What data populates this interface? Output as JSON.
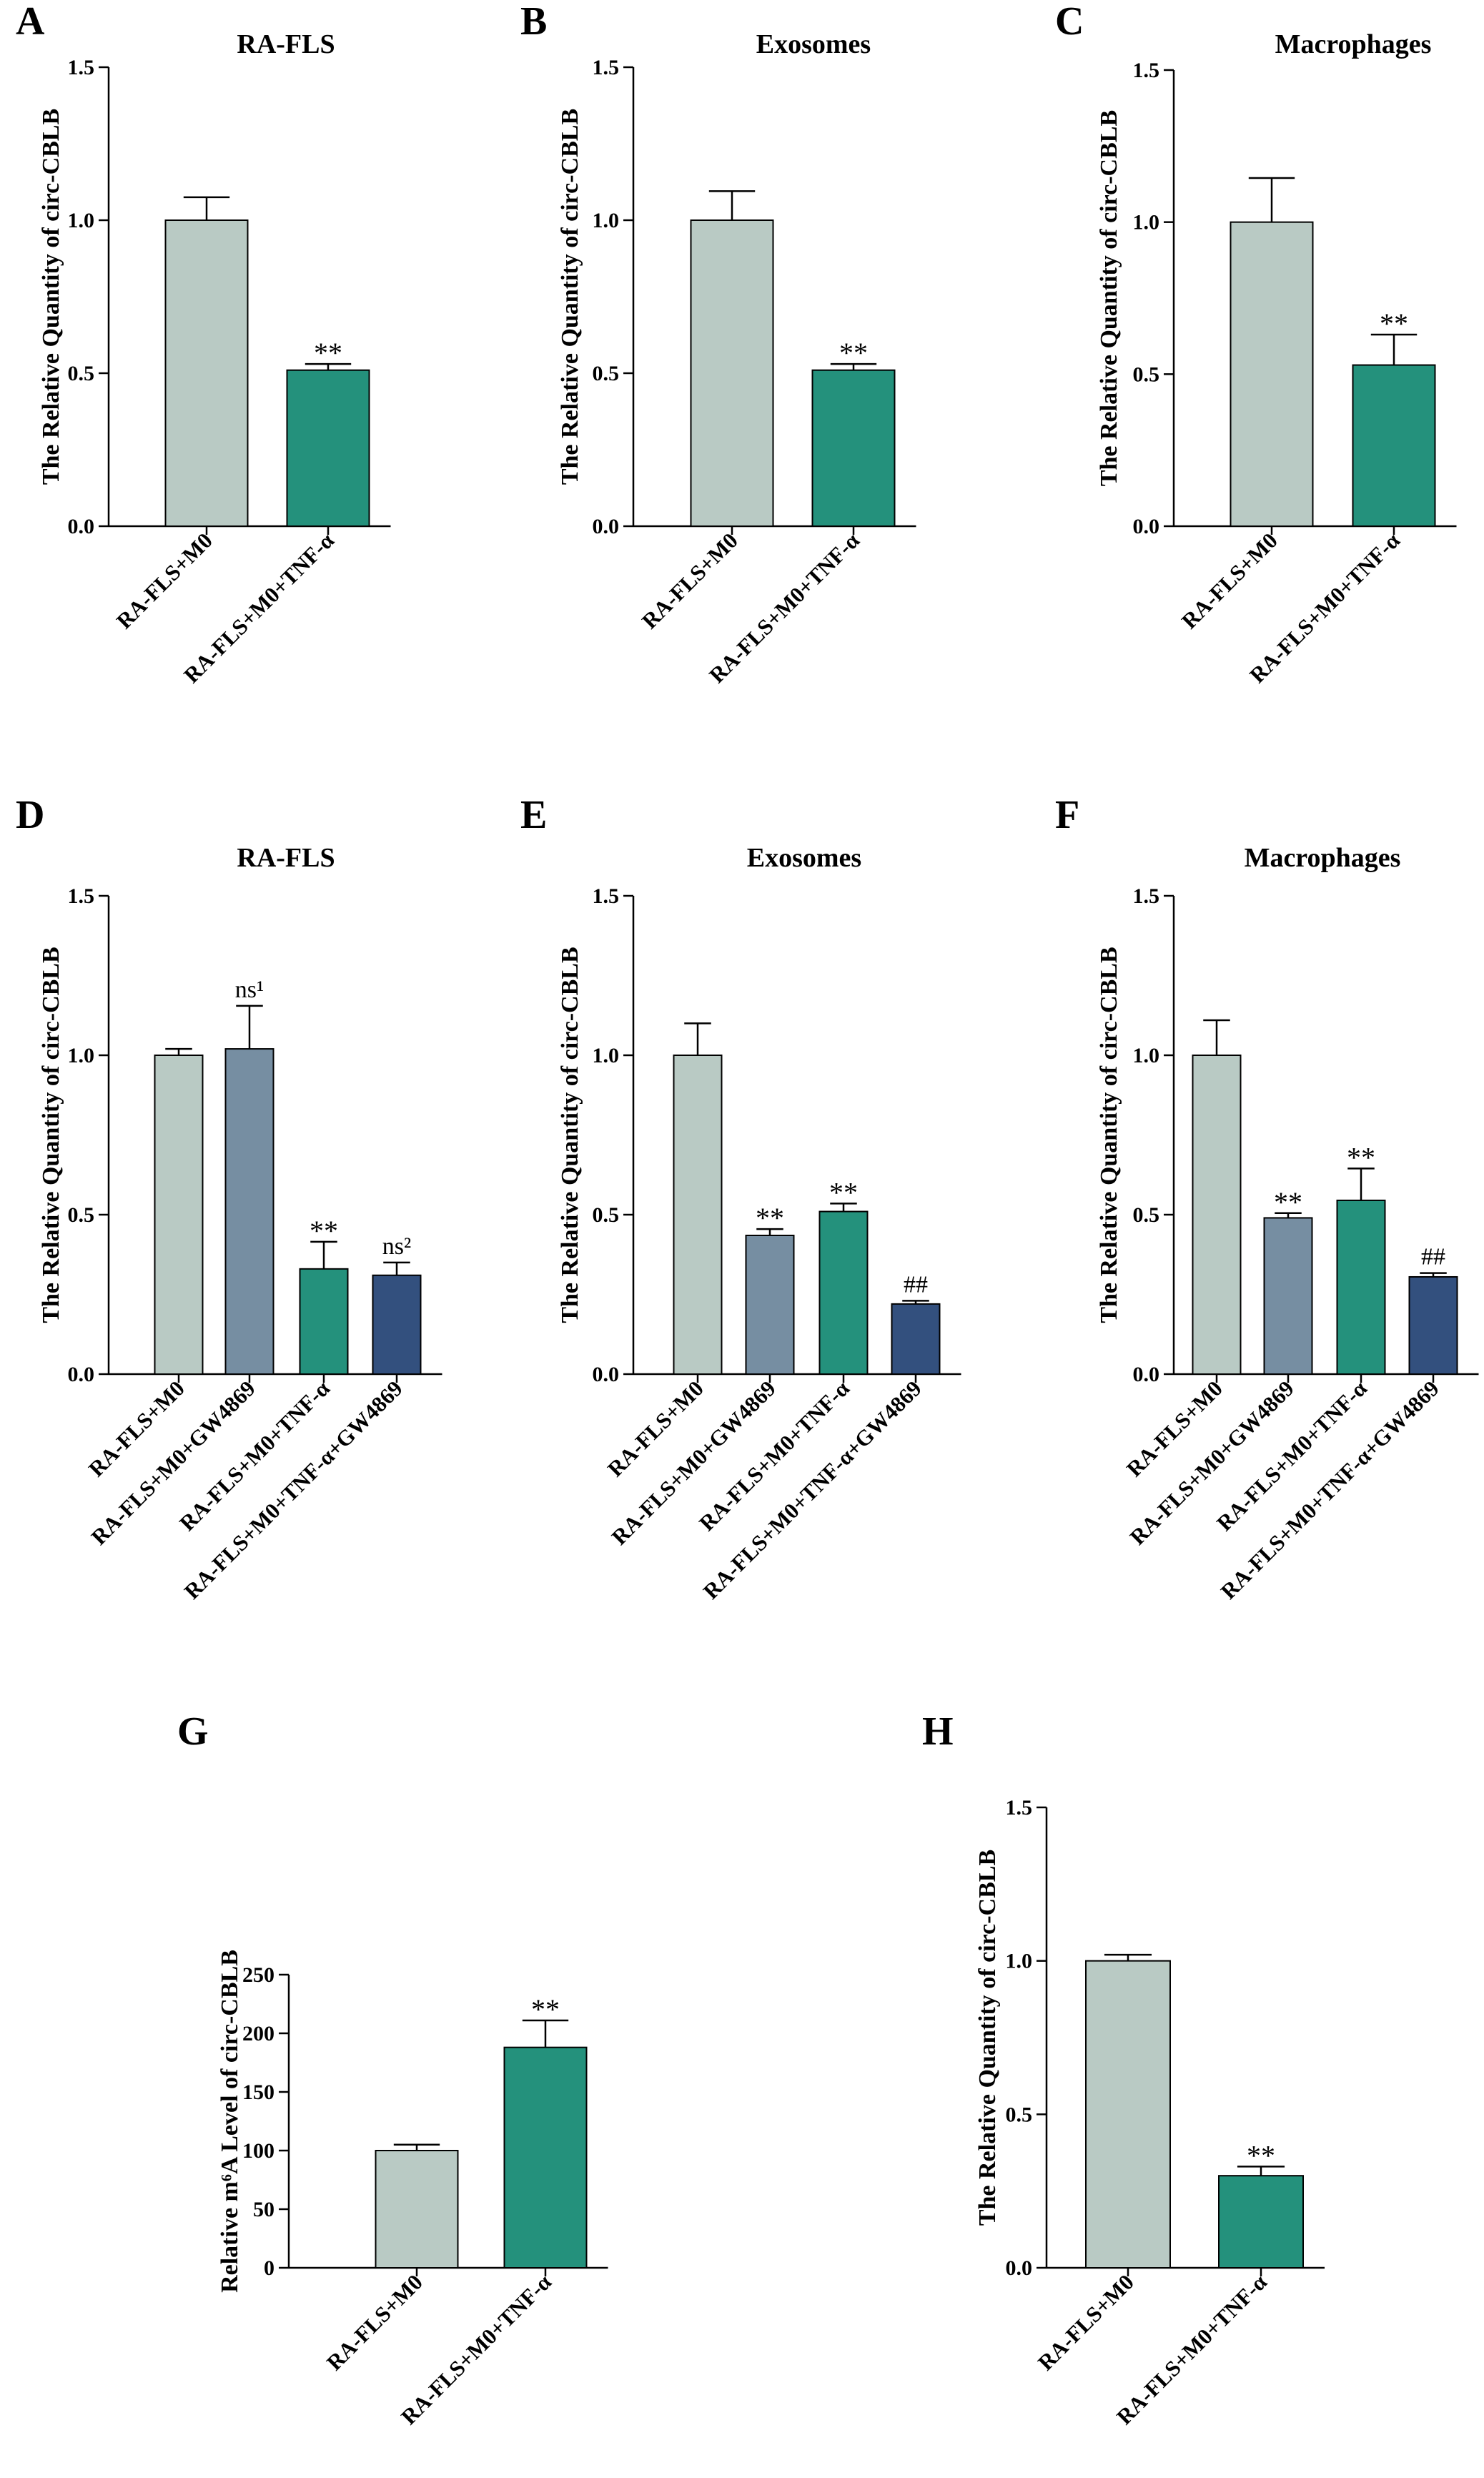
{
  "chart_data": [
    {
      "panel": "A",
      "type": "bar",
      "title": "RA-FLS",
      "ylabel": "The Relative Quantity of circ-CBLB",
      "ylim": [
        0,
        1.5
      ],
      "yticks": [
        "0.0",
        "0.5",
        "1.0",
        "1.5"
      ],
      "categories": [
        "RA-FLS+M0",
        "RA-FLS+M0+TNF-α"
      ],
      "values": [
        1.0,
        0.51
      ],
      "errors": [
        0.075,
        0.02
      ],
      "colors": [
        "#b9cac4",
        "#24917c"
      ],
      "annotations": [
        "",
        "**"
      ]
    },
    {
      "panel": "B",
      "type": "bar",
      "title": "Exosomes",
      "ylabel": "The Relative Quantity of circ-CBLB",
      "ylim": [
        0,
        1.5
      ],
      "yticks": [
        "0.0",
        "0.5",
        "1.0",
        "1.5"
      ],
      "categories": [
        "RA-FLS+M0",
        "RA-FLS+M0+TNF-α"
      ],
      "values": [
        1.0,
        0.51
      ],
      "errors": [
        0.095,
        0.02
      ],
      "colors": [
        "#b9cac4",
        "#24917c"
      ],
      "annotations": [
        "",
        "**"
      ]
    },
    {
      "panel": "C",
      "type": "bar",
      "title": "Macrophages",
      "ylabel": "The Relative Quantity of circ-CBLB",
      "ylim": [
        0,
        1.5
      ],
      "yticks": [
        "0.0",
        "0.5",
        "1.0",
        "1.5"
      ],
      "categories": [
        "RA-FLS+M0",
        "RA-FLS+M0+TNF-α"
      ],
      "values": [
        1.0,
        0.53
      ],
      "errors": [
        0.145,
        0.1
      ],
      "colors": [
        "#b9cac4",
        "#24917c"
      ],
      "annotations": [
        "",
        "**"
      ]
    },
    {
      "panel": "D",
      "type": "bar",
      "title": "RA-FLS",
      "ylabel": "The Relative Quantity of circ-CBLB",
      "ylim": [
        0,
        1.5
      ],
      "yticks": [
        "0.0",
        "0.5",
        "1.0",
        "1.5"
      ],
      "categories": [
        "RA-FLS+M0",
        "RA-FLS+M0+GW4869",
        "RA-FLS+M0+TNF-α",
        "RA-FLS+M0+TNF-α+GW4869"
      ],
      "values": [
        1.0,
        1.02,
        0.33,
        0.31
      ],
      "errors": [
        0.02,
        0.135,
        0.085,
        0.04
      ],
      "colors": [
        "#b9cac4",
        "#768ea2",
        "#24917c",
        "#33507e"
      ],
      "annotations": [
        "",
        "ns¹",
        "**",
        "ns²"
      ]
    },
    {
      "panel": "E",
      "type": "bar",
      "title": "Exosomes",
      "ylabel": "The Relative Quantity of circ-CBLB",
      "ylim": [
        0,
        1.5
      ],
      "yticks": [
        "0.0",
        "0.5",
        "1.0",
        "1.5"
      ],
      "categories": [
        "RA-FLS+M0",
        "RA-FLS+M0+GW4869",
        "RA-FLS+M0+TNF-α",
        "RA-FLS+M0+TNF-α+GW4869"
      ],
      "values": [
        1.0,
        0.435,
        0.51,
        0.22
      ],
      "errors": [
        0.1,
        0.02,
        0.025,
        0.01
      ],
      "colors": [
        "#b9cac4",
        "#768ea2",
        "#24917c",
        "#33507e"
      ],
      "annotations": [
        "",
        "**",
        "**",
        "##"
      ]
    },
    {
      "panel": "F",
      "type": "bar",
      "title": "Macrophages",
      "ylabel": "The Relative Quantity of circ-CBLB",
      "ylim": [
        0,
        1.5
      ],
      "yticks": [
        "0.0",
        "0.5",
        "1.0",
        "1.5"
      ],
      "categories": [
        "RA-FLS+M0",
        "RA-FLS+M0+GW4869",
        "RA-FLS+M0+TNF-α",
        "RA-FLS+M0+TNF-α+GW4869"
      ],
      "values": [
        1.0,
        0.49,
        0.545,
        0.305
      ],
      "errors": [
        0.11,
        0.015,
        0.1,
        0.012
      ],
      "colors": [
        "#b9cac4",
        "#768ea2",
        "#24917c",
        "#33507e"
      ],
      "annotations": [
        "",
        "**",
        "**",
        "##"
      ]
    },
    {
      "panel": "G",
      "type": "bar",
      "title": "",
      "ylabel": "Relative m⁶A Level of circ-CBLB",
      "ylim": [
        0,
        250
      ],
      "yticks": [
        "0",
        "50",
        "100",
        "150",
        "200",
        "250"
      ],
      "categories": [
        "RA-FLS+M0",
        "RA-FLS+M0+TNF-α"
      ],
      "values": [
        100,
        188
      ],
      "errors": [
        5,
        23
      ],
      "colors": [
        "#b9cac4",
        "#24917c"
      ],
      "annotations": [
        "",
        "**"
      ]
    },
    {
      "panel": "H",
      "type": "bar",
      "title": "",
      "ylabel": "The Relative Quantity of circ-CBLB",
      "ylim": [
        0,
        1.5
      ],
      "yticks": [
        "0.0",
        "0.5",
        "1.0",
        "1.5"
      ],
      "categories": [
        "RA-FLS+M0",
        "RA-FLS+M0+TNF-α"
      ],
      "values": [
        1.0,
        0.3
      ],
      "errors": [
        0.02,
        0.03
      ],
      "colors": [
        "#b9cac4",
        "#24917c"
      ],
      "annotations": [
        "",
        "**"
      ]
    }
  ]
}
